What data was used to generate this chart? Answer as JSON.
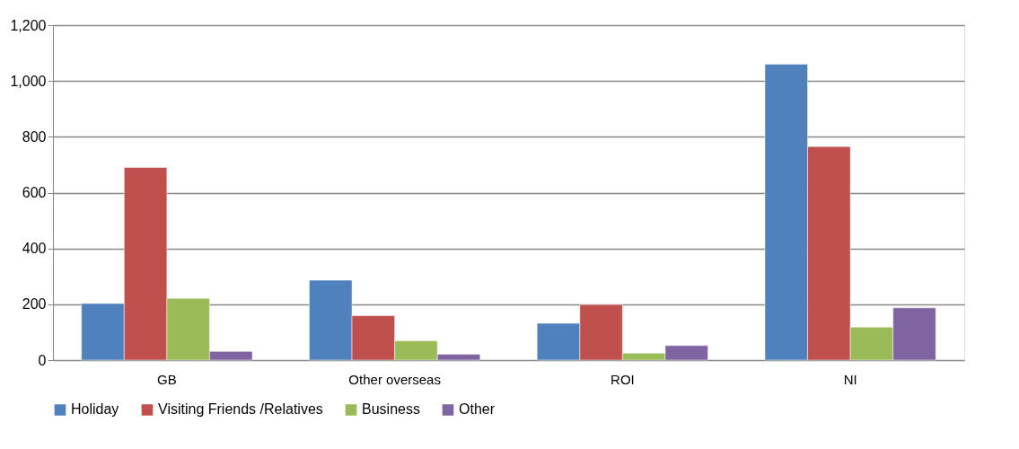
{
  "chart_data": {
    "type": "bar",
    "categories": [
      "GB",
      "Other overseas",
      "ROI",
      "NI"
    ],
    "series": [
      {
        "name": "Holiday",
        "color": "#4f81bd",
        "values": [
          203,
          286,
          132,
          1060
        ]
      },
      {
        "name": "Visiting Friends /Relatives",
        "color": "#c0504d",
        "values": [
          690,
          159,
          199,
          765
        ]
      },
      {
        "name": "Business",
        "color": "#9bbb59",
        "values": [
          221,
          69,
          25,
          118
        ]
      },
      {
        "name": "Other",
        "color": "#8064a2",
        "values": [
          31,
          21,
          52,
          187
        ]
      }
    ],
    "ylim": [
      0,
      1200
    ],
    "yticks": [
      0,
      200,
      400,
      600,
      800,
      {
        "value": 1000,
        "label": "1,000"
      },
      {
        "value": 1200,
        "label": "1,200"
      }
    ],
    "grid": "y",
    "legend": "bottom"
  }
}
